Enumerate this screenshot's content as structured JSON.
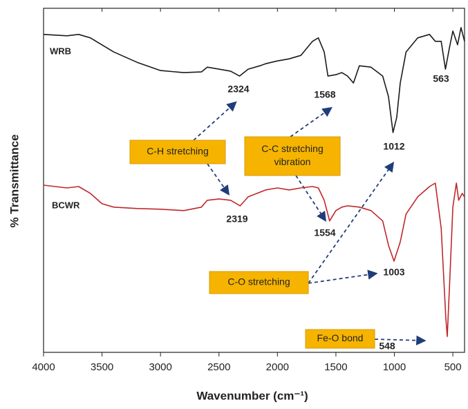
{
  "chart_data": {
    "type": "line",
    "x_label": "Wavenumber (cm⁻¹)",
    "y_label": "% Transmittance",
    "xlim": [
      4000,
      400
    ],
    "xticks": [
      4000,
      3500,
      3000,
      2500,
      2000,
      1500,
      1000,
      500
    ],
    "ylim": [
      0,
      100
    ],
    "series": [
      {
        "name": "WRB",
        "color": "#1a1a1a",
        "x": [
          4000,
          3800,
          3700,
          3600,
          3400,
          3200,
          3000,
          2800,
          2650,
          2600,
          2500,
          2400,
          2324,
          2250,
          2150,
          2100,
          2000,
          1900,
          1800,
          1700,
          1650,
          1600,
          1568,
          1500,
          1450,
          1400,
          1350,
          1300,
          1200,
          1100,
          1050,
          1012,
          980,
          950,
          900,
          800,
          700,
          650,
          600,
          563,
          530,
          500,
          460,
          430,
          400
        ],
        "values": [
          92.4,
          92,
          92.4,
          91.4,
          87.3,
          84.3,
          81.9,
          81.3,
          81.5,
          82.9,
          82.3,
          81.7,
          80.3,
          82.3,
          83.3,
          83.9,
          84.7,
          85.3,
          86.3,
          90.4,
          91.4,
          87.3,
          80.3,
          80.7,
          81.3,
          80.3,
          78.3,
          83.3,
          82.9,
          80.3,
          74.3,
          63.9,
          68.3,
          78.3,
          87.3,
          91.4,
          92.4,
          90.4,
          90.4,
          82.3,
          88.4,
          93.4,
          89.4,
          94.4,
          90.4
        ]
      },
      {
        "name": "BCWR",
        "color": "#c0262a",
        "x": [
          4000,
          3800,
          3700,
          3600,
          3500,
          3400,
          3200,
          3000,
          2800,
          2650,
          2600,
          2500,
          2400,
          2319,
          2250,
          2100,
          2000,
          1900,
          1800,
          1700,
          1650,
          1600,
          1554,
          1500,
          1450,
          1400,
          1300,
          1200,
          1100,
          1050,
          1003,
          950,
          900,
          800,
          700,
          650,
          600,
          560,
          548,
          530,
          500,
          470,
          450,
          420,
          400
        ],
        "values": [
          48.6,
          47.8,
          48.2,
          46.2,
          43.2,
          42.2,
          41.8,
          41.6,
          41.2,
          42.2,
          44.2,
          44.6,
          44.2,
          42.6,
          45.2,
          47.2,
          47.8,
          47.2,
          47.8,
          48.2,
          47.8,
          44.2,
          38.2,
          41.2,
          42.2,
          42.6,
          42.2,
          41.2,
          38.2,
          31.1,
          26.5,
          32.1,
          40.2,
          45.2,
          48.2,
          49.2,
          36.1,
          10,
          4.6,
          18.1,
          42.2,
          49.2,
          44.2,
          46.2,
          45.2
        ]
      }
    ],
    "annotations": [
      "2324",
      "1568",
      "563",
      "1012",
      "2319",
      "1554",
      "1003",
      "548"
    ],
    "boxes": [
      [
        "C-H stretching"
      ],
      [
        "C-C stretching",
        "vibration"
      ],
      [
        "C-O stretching"
      ],
      [
        "Fe-O bond"
      ]
    ]
  }
}
